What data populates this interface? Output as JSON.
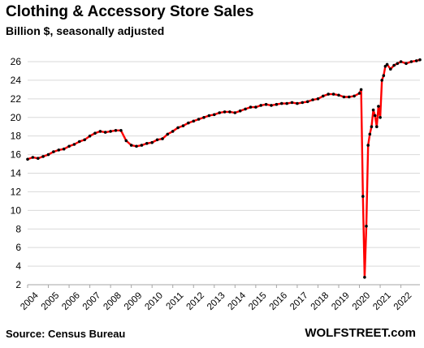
{
  "header": {
    "title": "Clothing & Accessory Store Sales",
    "subtitle": "Billion $, seasonally adjusted"
  },
  "footer": {
    "source": "Source: Census Bureau",
    "brand": "WOLFSTREET.com"
  },
  "colors": {
    "line": "#ff0000",
    "marker": "#000000",
    "grid": "#d9d9d9",
    "axis": "#a6a6a6"
  },
  "chart_data": {
    "type": "line",
    "title": "Clothing & Accessory Store Sales",
    "subtitle": "Billion $, seasonally adjusted",
    "xlabel": "",
    "ylabel": "",
    "ylim": [
      2,
      26
    ],
    "xlim": [
      2004.0,
      2022.917
    ],
    "grid": true,
    "legend": "none",
    "y_ticks": [
      2,
      4,
      6,
      8,
      10,
      12,
      14,
      16,
      18,
      20,
      22,
      24,
      26
    ],
    "x_ticks": [
      "2004",
      "2005",
      "2006",
      "2007",
      "2008",
      "2009",
      "2010",
      "2011",
      "2012",
      "2013",
      "2014",
      "2015",
      "2016",
      "2017",
      "2018",
      "2019",
      "2020",
      "2021",
      "2022"
    ],
    "series": [
      {
        "markers": true,
        "points": [
          [
            2004.0,
            15.5
          ],
          [
            2004.25,
            15.7
          ],
          [
            2004.5,
            15.6
          ],
          [
            2004.75,
            15.8
          ],
          [
            2005.0,
            16.0
          ],
          [
            2005.25,
            16.3
          ],
          [
            2005.5,
            16.5
          ],
          [
            2005.75,
            16.6
          ],
          [
            2006.0,
            16.9
          ],
          [
            2006.25,
            17.1
          ],
          [
            2006.5,
            17.4
          ],
          [
            2006.75,
            17.6
          ],
          [
            2007.0,
            18.0
          ],
          [
            2007.25,
            18.3
          ],
          [
            2007.5,
            18.5
          ],
          [
            2007.75,
            18.4
          ],
          [
            2008.0,
            18.5
          ],
          [
            2008.25,
            18.6
          ],
          [
            2008.5,
            18.6
          ],
          [
            2008.75,
            17.5
          ],
          [
            2009.0,
            17.0
          ],
          [
            2009.25,
            16.9
          ],
          [
            2009.5,
            17.0
          ],
          [
            2009.75,
            17.2
          ],
          [
            2010.0,
            17.3
          ],
          [
            2010.25,
            17.6
          ],
          [
            2010.5,
            17.7
          ],
          [
            2010.75,
            18.2
          ],
          [
            2011.0,
            18.5
          ],
          [
            2011.25,
            18.9
          ],
          [
            2011.5,
            19.1
          ],
          [
            2011.75,
            19.4
          ],
          [
            2012.0,
            19.6
          ],
          [
            2012.25,
            19.8
          ],
          [
            2012.5,
            20.0
          ],
          [
            2012.75,
            20.2
          ],
          [
            2013.0,
            20.3
          ],
          [
            2013.25,
            20.5
          ],
          [
            2013.5,
            20.6
          ],
          [
            2013.75,
            20.6
          ],
          [
            2014.0,
            20.5
          ],
          [
            2014.25,
            20.7
          ],
          [
            2014.5,
            20.9
          ],
          [
            2014.75,
            21.1
          ],
          [
            2015.0,
            21.1
          ],
          [
            2015.25,
            21.3
          ],
          [
            2015.5,
            21.4
          ],
          [
            2015.75,
            21.3
          ],
          [
            2016.0,
            21.4
          ],
          [
            2016.25,
            21.5
          ],
          [
            2016.5,
            21.5
          ],
          [
            2016.75,
            21.6
          ],
          [
            2017.0,
            21.5
          ],
          [
            2017.25,
            21.6
          ],
          [
            2017.5,
            21.7
          ],
          [
            2017.75,
            21.9
          ],
          [
            2018.0,
            22.0
          ],
          [
            2018.25,
            22.3
          ],
          [
            2018.5,
            22.5
          ],
          [
            2018.75,
            22.5
          ],
          [
            2019.0,
            22.4
          ],
          [
            2019.25,
            22.2
          ],
          [
            2019.5,
            22.2
          ],
          [
            2019.75,
            22.3
          ],
          [
            2020.0,
            22.6
          ],
          [
            2020.083,
            23.0
          ],
          [
            2020.167,
            11.5
          ],
          [
            2020.25,
            2.8
          ],
          [
            2020.333,
            8.3
          ],
          [
            2020.417,
            17.0
          ],
          [
            2020.5,
            18.2
          ],
          [
            2020.583,
            19.0
          ],
          [
            2020.667,
            20.8
          ],
          [
            2020.75,
            20.2
          ],
          [
            2020.833,
            19.0
          ],
          [
            2020.917,
            21.2
          ],
          [
            2021.0,
            20.0
          ],
          [
            2021.083,
            24.0
          ],
          [
            2021.167,
            24.5
          ],
          [
            2021.25,
            25.5
          ],
          [
            2021.333,
            25.7
          ],
          [
            2021.5,
            25.2
          ],
          [
            2021.667,
            25.6
          ],
          [
            2021.833,
            25.8
          ],
          [
            2022.0,
            26.0
          ],
          [
            2022.25,
            25.8
          ],
          [
            2022.5,
            26.0
          ],
          [
            2022.75,
            26.1
          ],
          [
            2022.917,
            26.2
          ]
        ]
      }
    ]
  }
}
